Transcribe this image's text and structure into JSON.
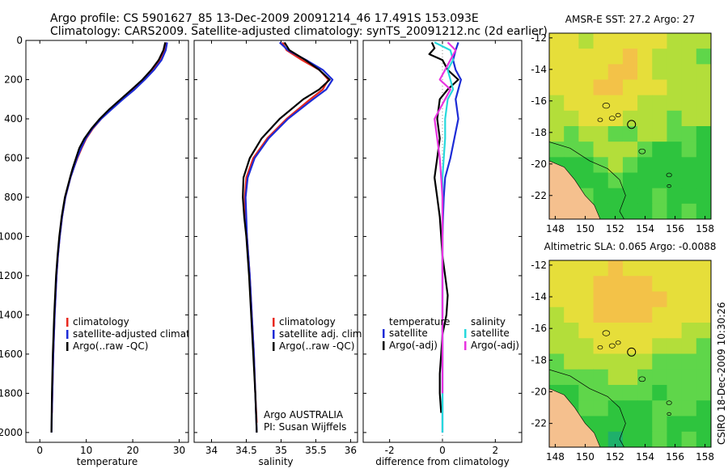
{
  "header": {
    "title_line1": "Argo profile: CS 5901627_85 13-Dec-2009 20091214_46 17.491S 153.093E",
    "title_line2": "Climatology: CARS2009. Satellite-adjusted climatology: synTS_20091212.nc (2d earlier)"
  },
  "credit": "CSIRO 18-Dec-2009 10:30:26",
  "colors": {
    "climatology": "#e8281e",
    "satellite": "#1c2bd6",
    "argo": "#000000",
    "sat_salinity": "#27d8dc",
    "argo_salinity": "#e833e0",
    "land": "#f5c08e"
  },
  "chart_data": [
    {
      "id": "temperature",
      "type": "line",
      "xlabel": "temperature",
      "ylabel": "",
      "xlim": [
        -3,
        32
      ],
      "ylim": [
        2050,
        0
      ],
      "xticks": [
        0,
        10,
        20,
        30
      ],
      "yticks": [
        0,
        200,
        400,
        600,
        800,
        1000,
        1200,
        1400,
        1600,
        1800,
        2000
      ],
      "legend": [
        "climatology",
        "satellite-adjusted climatology",
        "Argo(..raw -QC)"
      ],
      "series": [
        {
          "name": "climatology",
          "color": "#e8281e",
          "depth": [
            10,
            50,
            100,
            150,
            200,
            250,
            300,
            350,
            400,
            450,
            500,
            550,
            600,
            650,
            700,
            800,
            900,
            1000,
            1100,
            1200,
            1400,
            1600,
            1800,
            1900
          ],
          "values": [
            27.3,
            26.8,
            25.8,
            24.2,
            22.4,
            20.2,
            17.8,
            15.4,
            13.2,
            11.4,
            10.0,
            9.0,
            8.1,
            7.3,
            6.6,
            5.5,
            4.8,
            4.3,
            3.9,
            3.6,
            3.2,
            2.9,
            2.7,
            2.6
          ]
        },
        {
          "name": "satellite-adjusted climatology",
          "color": "#1c2bd6",
          "depth": [
            10,
            50,
            100,
            150,
            200,
            250,
            300,
            350,
            400,
            450,
            500,
            550,
            600,
            650,
            700,
            800,
            900,
            1000,
            1100,
            1200,
            1400,
            1600,
            1800,
            2000
          ],
          "values": [
            27.4,
            27.1,
            26.2,
            24.6,
            22.6,
            20.4,
            17.9,
            15.5,
            13.2,
            11.3,
            9.9,
            8.9,
            8.0,
            7.3,
            6.6,
            5.5,
            4.8,
            4.3,
            3.9,
            3.6,
            3.2,
            2.9,
            2.7,
            2.5
          ]
        },
        {
          "name": "Argo(..raw -QC)",
          "color": "#000000",
          "depth": [
            10,
            50,
            100,
            150,
            200,
            250,
            300,
            350,
            400,
            450,
            500,
            550,
            600,
            650,
            700,
            800,
            900,
            1000,
            1100,
            1200,
            1400,
            1600,
            1800,
            2000
          ],
          "values": [
            27.0,
            26.6,
            25.6,
            24.0,
            22.1,
            19.8,
            17.4,
            15.0,
            12.9,
            11.1,
            9.6,
            8.5,
            7.8,
            7.1,
            6.5,
            5.4,
            4.7,
            4.2,
            3.8,
            3.5,
            3.1,
            2.8,
            2.6,
            2.5
          ]
        }
      ]
    },
    {
      "id": "salinity",
      "type": "line",
      "xlabel": "salinity",
      "ylabel": "",
      "xlim": [
        33.75,
        36.1
      ],
      "ylim": [
        2050,
        0
      ],
      "xticks": [
        34,
        34.5,
        35,
        35.5,
        36
      ],
      "yticks": [
        0,
        200,
        400,
        600,
        800,
        1000,
        1200,
        1400,
        1600,
        1800,
        2000
      ],
      "legend": [
        "climatology",
        "satellite adj. clim.",
        "Argo(..raw -QC)"
      ],
      "annotation": [
        "Argo AUSTRALIA",
        "PI: Susan Wijffels"
      ],
      "series": [
        {
          "name": "climatology",
          "color": "#e8281e",
          "depth": [
            10,
            50,
            100,
            150,
            200,
            250,
            300,
            400,
            500,
            600,
            700,
            800,
            900,
            1000,
            1200,
            1400,
            1600,
            1800,
            1950
          ],
          "values": [
            35.02,
            35.08,
            35.3,
            35.55,
            35.68,
            35.6,
            35.42,
            35.08,
            34.8,
            34.6,
            34.5,
            34.48,
            34.49,
            34.51,
            34.55,
            34.58,
            34.61,
            34.63,
            34.65
          ]
        },
        {
          "name": "satellite adj. clim.",
          "color": "#1c2bd6",
          "depth": [
            10,
            50,
            100,
            150,
            200,
            250,
            300,
            400,
            500,
            600,
            700,
            800,
            900,
            1000,
            1200,
            1400,
            1600,
            1800,
            2000
          ],
          "values": [
            34.98,
            35.1,
            35.36,
            35.6,
            35.74,
            35.65,
            35.46,
            35.1,
            34.82,
            34.62,
            34.52,
            34.49,
            34.5,
            34.51,
            34.55,
            34.58,
            34.61,
            34.63,
            34.65
          ]
        },
        {
          "name": "Argo(..raw -QC)",
          "color": "#000000",
          "depth": [
            10,
            50,
            100,
            150,
            200,
            250,
            300,
            400,
            500,
            600,
            700,
            800,
            900,
            1000,
            1200,
            1400,
            1600,
            1800,
            2000
          ],
          "values": [
            35.05,
            35.12,
            35.35,
            35.55,
            35.7,
            35.55,
            35.32,
            34.98,
            34.72,
            34.55,
            34.46,
            34.45,
            34.47,
            34.5,
            34.54,
            34.57,
            34.6,
            34.63,
            34.65
          ]
        }
      ]
    },
    {
      "id": "difference",
      "type": "line",
      "xlabel": "difference from climatology",
      "ylabel": "",
      "xlim": [
        -3,
        3
      ],
      "ylim": [
        2050,
        0
      ],
      "xticks": [
        -2,
        0,
        2
      ],
      "yticks": [
        0,
        200,
        400,
        600,
        800,
        1000,
        1200,
        1400,
        1600,
        1800,
        2000
      ],
      "legend_headers": [
        "temperature",
        "salinity"
      ],
      "legend": [
        "satellite",
        "Argo(-adj)",
        "satellite",
        "Argo(-adj)"
      ],
      "series": [
        {
          "name": "temperature satellite",
          "color": "#1c2bd6",
          "depth": [
            10,
            50,
            100,
            150,
            200,
            250,
            300,
            400,
            500,
            600,
            700,
            800,
            900,
            1000,
            1200,
            1400,
            1600,
            1800,
            2000
          ],
          "values": [
            0.6,
            0.5,
            0.4,
            0.5,
            0.7,
            0.6,
            0.5,
            0.6,
            0.45,
            0.3,
            0.1,
            0.05,
            0.02,
            0.0,
            0.0,
            0.0,
            0.0,
            0.0,
            0.0
          ]
        },
        {
          "name": "temperature Argo(-adj)",
          "color": "#000000",
          "depth": [
            10,
            40,
            70,
            100,
            150,
            200,
            250,
            300,
            400,
            500,
            600,
            700,
            800,
            900,
            1000,
            1100,
            1200,
            1300,
            1400,
            1500,
            1600,
            1700,
            1800,
            1900
          ],
          "values": [
            -0.4,
            -0.3,
            -0.5,
            0.0,
            0.2,
            0.6,
            0.2,
            -0.1,
            -0.2,
            -0.1,
            -0.2,
            -0.3,
            -0.2,
            -0.1,
            -0.05,
            0.0,
            0.1,
            0.2,
            0.15,
            0.0,
            -0.05,
            -0.1,
            -0.1,
            -0.05
          ]
        },
        {
          "name": "salinity satellite",
          "color": "#27d8dc",
          "depth": [
            10,
            50,
            100,
            150,
            200,
            250,
            300,
            400,
            500,
            600,
            700,
            800,
            1000,
            1200,
            1400,
            1600,
            1800,
            2000
          ],
          "values": [
            -0.3,
            0.3,
            0.4,
            0.2,
            0.3,
            0.4,
            0.2,
            0.1,
            0.1,
            0.05,
            0.0,
            0.0,
            0.0,
            0.0,
            0.0,
            0.0,
            0.0,
            0.0
          ]
        },
        {
          "name": "salinity Argo(-adj)",
          "color": "#e833e0",
          "depth": [
            10,
            50,
            100,
            150,
            200,
            250,
            300,
            400,
            500,
            600,
            700,
            800,
            1000,
            1200,
            1400,
            1600,
            1800
          ],
          "values": [
            0.2,
            0.5,
            0.3,
            0.1,
            -0.1,
            0.3,
            0.1,
            -0.3,
            -0.2,
            -0.1,
            -0.05,
            0.0,
            0.0,
            0.0,
            0.0,
            0.0,
            0.0
          ]
        }
      ]
    },
    {
      "id": "sst-map",
      "type": "heatmap",
      "title": "AMSR-E SST: 27.2 Argo: 27",
      "xlim": [
        147.6,
        158.4
      ],
      "ylim": [
        -23.5,
        -11.7
      ],
      "xticks": [
        148,
        150,
        152,
        154,
        156,
        158
      ],
      "yticks": [
        -12,
        -14,
        -16,
        -18,
        -20,
        -22
      ],
      "marker": {
        "lon": 153.093,
        "lat": -17.491
      }
    },
    {
      "id": "sla-map",
      "type": "heatmap",
      "title": "Altimetric SLA: 0.065 Argo: -0.0088",
      "xlim": [
        147.6,
        158.4
      ],
      "ylim": [
        -23.5,
        -11.7
      ],
      "xticks": [
        148,
        150,
        152,
        154,
        156,
        158
      ],
      "yticks": [
        -12,
        -14,
        -16,
        -18,
        -20,
        -22
      ],
      "marker": {
        "lon": 153.093,
        "lat": -17.491
      }
    }
  ]
}
